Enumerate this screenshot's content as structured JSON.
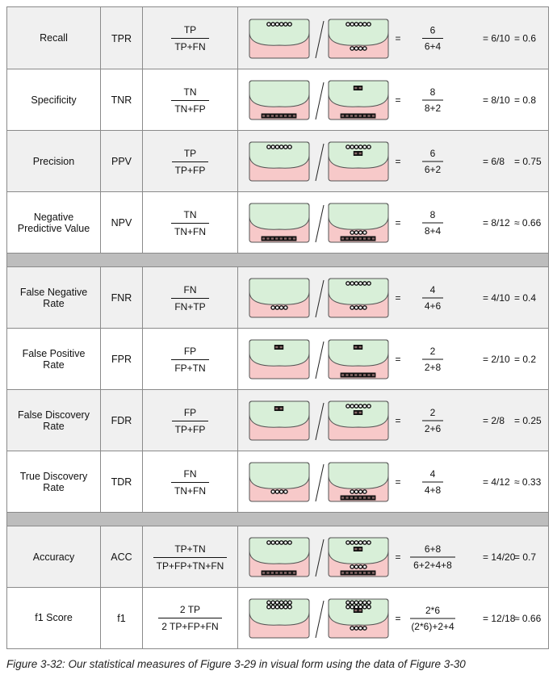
{
  "measures": [
    {
      "name": "Recall",
      "abbr": "TPR",
      "num_formula": "TP",
      "den_formula": "TP+FN",
      "left": {
        "tp": 6,
        "fp": 0,
        "tn": 0,
        "fn": 0
      },
      "right": {
        "tp": 6,
        "fp": 0,
        "tn": 0,
        "fn": 4
      },
      "value_num": "6",
      "value_den": "6+4",
      "ratio": "= 6/10",
      "result": "= 0.6"
    },
    {
      "name": "Specificity",
      "abbr": "TNR",
      "num_formula": "TN",
      "den_formula": "TN+FP",
      "left": {
        "tp": 0,
        "fp": 0,
        "tn": 8,
        "fn": 0
      },
      "right": {
        "tp": 0,
        "fp": 2,
        "tn": 8,
        "fn": 0
      },
      "value_num": "8",
      "value_den": "8+2",
      "ratio": "= 8/10",
      "result": "= 0.8"
    },
    {
      "name": "Precision",
      "abbr": "PPV",
      "num_formula": "TP",
      "den_formula": "TP+FP",
      "left": {
        "tp": 6,
        "fp": 0,
        "tn": 0,
        "fn": 0
      },
      "right": {
        "tp": 6,
        "fp": 2,
        "tn": 0,
        "fn": 0
      },
      "value_num": "6",
      "value_den": "6+2",
      "ratio": "= 6/8",
      "result": "= 0.75"
    },
    {
      "name": "Negative Predictive Value",
      "abbr": "NPV",
      "num_formula": "TN",
      "den_formula": "TN+FN",
      "left": {
        "tp": 0,
        "fp": 0,
        "tn": 8,
        "fn": 0
      },
      "right": {
        "tp": 0,
        "fp": 0,
        "tn": 8,
        "fn": 4
      },
      "value_num": "8",
      "value_den": "8+4",
      "ratio": "= 8/12",
      "result": "≈ 0.66"
    },
    {
      "name": "False Negative Rate",
      "abbr": "FNR",
      "num_formula": "FN",
      "den_formula": "FN+TP",
      "left": {
        "tp": 0,
        "fp": 0,
        "tn": 0,
        "fn": 4
      },
      "right": {
        "tp": 6,
        "fp": 0,
        "tn": 0,
        "fn": 4
      },
      "value_num": "4",
      "value_den": "4+6",
      "ratio": "= 4/10",
      "result": "= 0.4"
    },
    {
      "name": "False Positive Rate",
      "abbr": "FPR",
      "num_formula": "FP",
      "den_formula": "FP+TN",
      "left": {
        "tp": 0,
        "fp": 2,
        "tn": 0,
        "fn": 0
      },
      "right": {
        "tp": 0,
        "fp": 2,
        "tn": 8,
        "fn": 0
      },
      "value_num": "2",
      "value_den": "2+8",
      "ratio": "= 2/10",
      "result": "= 0.2"
    },
    {
      "name": "False Discovery Rate",
      "abbr": "FDR",
      "num_formula": "FP",
      "den_formula": "TP+FP",
      "left": {
        "tp": 0,
        "fp": 2,
        "tn": 0,
        "fn": 0
      },
      "right": {
        "tp": 6,
        "fp": 2,
        "tn": 0,
        "fn": 0
      },
      "value_num": "2",
      "value_den": "2+6",
      "ratio": "= 2/8",
      "result": "= 0.25"
    },
    {
      "name": "True Discovery Rate",
      "abbr": "TDR",
      "num_formula": "FN",
      "den_formula": "TN+FN",
      "left": {
        "tp": 0,
        "fp": 0,
        "tn": 0,
        "fn": 4
      },
      "right": {
        "tp": 0,
        "fp": 0,
        "tn": 8,
        "fn": 4
      },
      "value_num": "4",
      "value_den": "4+8",
      "ratio": "= 4/12",
      "result": "≈ 0.33"
    },
    {
      "name": "Accuracy",
      "abbr": "ACC",
      "num_formula": "TP+TN",
      "den_formula": "TP+FP+TN+FN",
      "left": {
        "tp": 6,
        "fp": 0,
        "tn": 8,
        "fn": 0
      },
      "right": {
        "tp": 6,
        "fp": 2,
        "tn": 8,
        "fn": 4
      },
      "value_num": "6+8",
      "value_den": "6+2+4+8",
      "ratio": "= 14/20",
      "result": "= 0.7"
    },
    {
      "name": "f1 Score",
      "abbr": "f1",
      "num_formula": "2 TP",
      "den_formula": "2 TP+FP+FN",
      "left": {
        "tp": 12,
        "fp": 0,
        "tn": 0,
        "fn": 0
      },
      "right": {
        "tp": 12,
        "fp": 2,
        "tn": 0,
        "fn": 4
      },
      "value_num": "2*6",
      "value_den": "(2*6)+2+4",
      "ratio": "= 12/18",
      "result": "≈ 0.66"
    }
  ],
  "groups": [
    [
      0,
      1,
      2,
      3
    ],
    [
      4,
      5,
      6,
      7
    ],
    [
      8,
      9
    ]
  ],
  "caption": "Figure 3-32: Our statistical measures of Figure 3-29 in visual form using the data of Figure 3-30",
  "colors": {
    "predicted_positive_fill": "#d8efd8",
    "predicted_negative_fill": "#f7c9c9",
    "outline": "#555555",
    "separator": "#bdbdbd",
    "row_shade": "#f0f0f0",
    "marker_fill": "#111111"
  }
}
